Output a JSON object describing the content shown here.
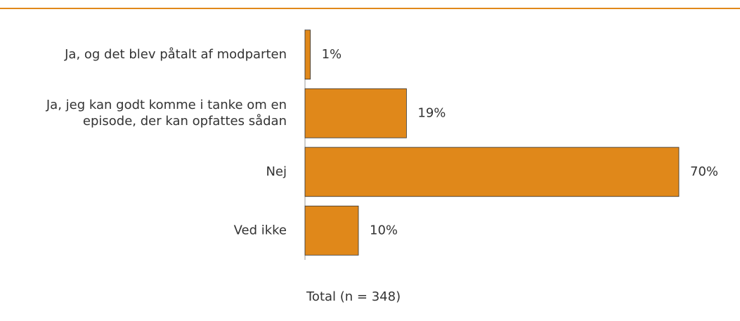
{
  "chart_data": {
    "type": "barh",
    "categories": [
      [
        "Ja, og det blev påtalt af modparten"
      ],
      [
        "Ja, jeg kan godt komme i tanke om en",
        "episode, der kan opfattes sådan"
      ],
      [
        "Nej"
      ],
      [
        "Ved ikke"
      ]
    ],
    "values": [
      1,
      19,
      70,
      10
    ],
    "value_labels": [
      "1%",
      "19%",
      "70%",
      "10%"
    ],
    "color": "#e0881a",
    "xlim": [
      0,
      70
    ],
    "note": "Total (n = 348)"
  }
}
